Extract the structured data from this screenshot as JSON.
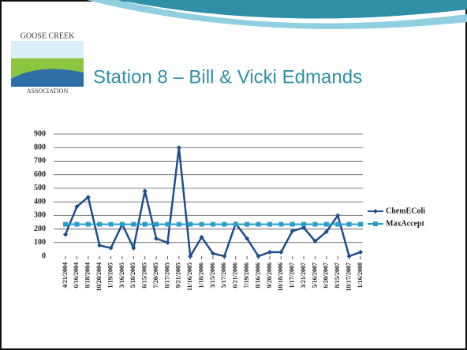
{
  "slide": {
    "title": "Station 8 – Bill & Vicki Edmands",
    "logo": {
      "top": "GOOSE CREEK",
      "bottom": "ASSOCIATION"
    }
  },
  "chart_data": {
    "type": "line",
    "categories": [
      "4/21/2004",
      "6/16/2004",
      "8/18/2004",
      "10/20/2004",
      "1/19/2005",
      "3/16/2005",
      "5/18/2005",
      "6/15/2005",
      "7/20/2005",
      "8/17/2005",
      "9/21/2005",
      "11/16/2005",
      "1/18/2006",
      "3/15/2006",
      "5/17/2006",
      "6/21/2006",
      "7/19/2006",
      "8/16/2006",
      "9/20/2006",
      "10/18/2006",
      "1/17/2007",
      "3/21/2007",
      "5/16/2007",
      "6/20/2007",
      "8/15/2007",
      "10/17/2007",
      "1/16/2008"
    ],
    "series": [
      {
        "name": "ChemEColi",
        "color": "#1f4e8c",
        "values": [
          160,
          365,
          435,
          80,
          60,
          235,
          60,
          480,
          130,
          100,
          800,
          0,
          140,
          20,
          0,
          240,
          130,
          0,
          30,
          30,
          185,
          210,
          110,
          180,
          300,
          0,
          30
        ]
      },
      {
        "name": "MaxAccept",
        "color": "#2a9bc8",
        "values": [
          235,
          235,
          235,
          235,
          235,
          235,
          235,
          235,
          235,
          235,
          235,
          235,
          235,
          235,
          235,
          235,
          235,
          235,
          235,
          235,
          235,
          235,
          235,
          235,
          235,
          235,
          235
        ]
      }
    ],
    "ylim": [
      0,
      900
    ],
    "yticks": [
      0,
      100,
      200,
      300,
      400,
      500,
      600,
      700,
      800,
      900
    ],
    "grid": true,
    "legend": "right"
  }
}
